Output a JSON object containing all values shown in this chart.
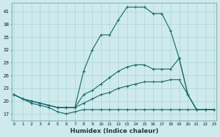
{
  "title": "",
  "xlabel": "Humidex (Indice chaleur)",
  "ylabel": "",
  "bg_color": "#ceeaec",
  "grid_color": "#aad4d8",
  "line_color": "#1a6e6e",
  "x_ticks": [
    0,
    1,
    2,
    3,
    4,
    5,
    6,
    7,
    8,
    9,
    10,
    11,
    12,
    13,
    14,
    15,
    16,
    17,
    18,
    19,
    20,
    21,
    22,
    23
  ],
  "y_ticks": [
    17,
    20,
    23,
    26,
    29,
    32,
    35,
    38,
    41
  ],
  "ylim": [
    15.5,
    43
  ],
  "xlim": [
    -0.3,
    23.3
  ],
  "series": [
    {
      "x": [
        0,
        1,
        2,
        3,
        4,
        5,
        6,
        7,
        8,
        9,
        10,
        11,
        12,
        13,
        14,
        15,
        16,
        17,
        18,
        19,
        20,
        21,
        22,
        23
      ],
      "y": [
        21.5,
        20.5,
        20.0,
        19.5,
        19.0,
        18.5,
        18.5,
        18.5,
        27.0,
        32.0,
        35.5,
        35.5,
        39.0,
        42.0,
        42.0,
        42.0,
        40.5,
        40.5,
        36.5,
        30.0,
        21.5,
        18.0,
        18.0,
        18.0
      ]
    },
    {
      "x": [
        0,
        1,
        2,
        3,
        4,
        5,
        6,
        7,
        8,
        9,
        10,
        11,
        12,
        13,
        14,
        15,
        16,
        17,
        18,
        19,
        20,
        21,
        22,
        23
      ],
      "y": [
        21.5,
        20.5,
        20.0,
        19.5,
        19.0,
        18.5,
        18.5,
        18.5,
        21.5,
        22.5,
        24.0,
        25.5,
        27.0,
        28.0,
        28.5,
        28.5,
        27.5,
        27.5,
        27.5,
        30.0,
        21.5,
        18.0,
        18.0,
        18.0
      ]
    },
    {
      "x": [
        0,
        1,
        2,
        3,
        4,
        5,
        6,
        7,
        8,
        9,
        10,
        11,
        12,
        13,
        14,
        15,
        16,
        17,
        18,
        19,
        20,
        21,
        22,
        23
      ],
      "y": [
        21.5,
        20.5,
        20.0,
        19.5,
        19.0,
        18.5,
        18.5,
        18.5,
        19.5,
        20.5,
        21.5,
        22.0,
        23.0,
        23.5,
        24.0,
        24.5,
        24.5,
        24.5,
        25.0,
        25.0,
        21.5,
        18.0,
        18.0,
        18.0
      ]
    },
    {
      "x": [
        0,
        1,
        2,
        3,
        4,
        5,
        6,
        7,
        8,
        9,
        10,
        11,
        12,
        13,
        14,
        15,
        16,
        17,
        18,
        19,
        20,
        21,
        22,
        23
      ],
      "y": [
        21.5,
        20.5,
        19.5,
        19.0,
        18.5,
        17.5,
        17.0,
        17.5,
        18.0,
        18.0,
        18.0,
        18.0,
        18.0,
        18.0,
        18.0,
        18.0,
        18.0,
        18.0,
        18.0,
        18.0,
        18.0,
        18.0,
        18.0,
        18.0
      ]
    }
  ]
}
